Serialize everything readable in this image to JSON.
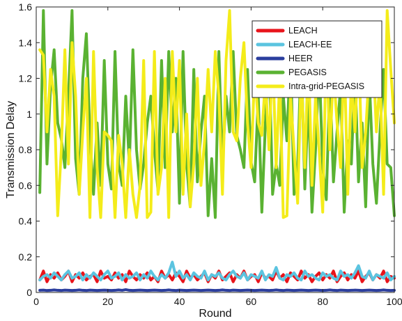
{
  "chart_data": {
    "type": "line",
    "xlabel": "Round",
    "ylabel": "Transmission Delay",
    "xlim": [
      0,
      100
    ],
    "ylim": [
      0,
      1.6
    ],
    "xticks": [
      "0",
      "20",
      "40",
      "60",
      "80",
      "100"
    ],
    "yticks": [
      "0",
      "0.2",
      "0.4",
      "0.6",
      "0.8",
      "1",
      "1.2",
      "1.4",
      "1.6"
    ],
    "xtick_values": [
      0,
      20,
      40,
      60,
      80,
      100
    ],
    "ytick_values": [
      0,
      0.2,
      0.4,
      0.6,
      0.8,
      1.0,
      1.2,
      1.4,
      1.6
    ],
    "grid": false,
    "legend_position": "top-right",
    "x": [
      1,
      2,
      3,
      4,
      5,
      6,
      7,
      8,
      9,
      10,
      11,
      12,
      13,
      14,
      15,
      16,
      17,
      18,
      19,
      20,
      21,
      22,
      23,
      24,
      25,
      26,
      27,
      28,
      29,
      30,
      31,
      32,
      33,
      34,
      35,
      36,
      37,
      38,
      39,
      40,
      41,
      42,
      43,
      44,
      45,
      46,
      47,
      48,
      49,
      50,
      51,
      52,
      53,
      54,
      55,
      56,
      57,
      58,
      59,
      60,
      61,
      62,
      63,
      64,
      65,
      66,
      67,
      68,
      69,
      70,
      71,
      72,
      73,
      74,
      75,
      76,
      77,
      78,
      79,
      80,
      81,
      82,
      83,
      84,
      85,
      86,
      87,
      88,
      89,
      90,
      91,
      92,
      93,
      94,
      95,
      96,
      97,
      98,
      99,
      100
    ],
    "series": [
      {
        "name": "LEACH",
        "color": "#e8141b",
        "values": [
          0.07,
          0.12,
          0.06,
          0.1,
          0.08,
          0.11,
          0.07,
          0.09,
          0.12,
          0.06,
          0.1,
          0.08,
          0.11,
          0.07,
          0.09,
          0.1,
          0.06,
          0.12,
          0.08,
          0.09,
          0.07,
          0.11,
          0.08,
          0.1,
          0.06,
          0.12,
          0.09,
          0.07,
          0.1,
          0.08,
          0.11,
          0.07,
          0.09,
          0.06,
          0.12,
          0.08,
          0.1,
          0.07,
          0.11,
          0.09,
          0.06,
          0.12,
          0.08,
          0.1,
          0.07,
          0.09,
          0.11,
          0.06,
          0.1,
          0.08,
          0.12,
          0.07,
          0.09,
          0.11,
          0.06,
          0.1,
          0.08,
          0.12,
          0.07,
          0.09,
          0.1,
          0.06,
          0.11,
          0.08,
          0.09,
          0.07,
          0.12,
          0.08,
          0.1,
          0.06,
          0.11,
          0.09,
          0.07,
          0.12,
          0.08,
          0.1,
          0.06,
          0.09,
          0.11,
          0.07,
          0.1,
          0.08,
          0.12,
          0.06,
          0.09,
          0.11,
          0.07,
          0.1,
          0.08,
          0.12,
          0.06,
          0.09,
          0.11,
          0.07,
          0.1,
          0.08,
          0.12,
          0.06,
          0.09,
          0.08
        ]
      },
      {
        "name": "LEACH-EE",
        "color": "#5bc4e0",
        "values": [
          0.07,
          0.09,
          0.1,
          0.08,
          0.11,
          0.09,
          0.07,
          0.1,
          0.12,
          0.08,
          0.09,
          0.11,
          0.07,
          0.1,
          0.08,
          0.11,
          0.09,
          0.07,
          0.1,
          0.12,
          0.08,
          0.09,
          0.11,
          0.07,
          0.1,
          0.08,
          0.09,
          0.11,
          0.07,
          0.1,
          0.08,
          0.12,
          0.09,
          0.07,
          0.1,
          0.08,
          0.11,
          0.17,
          0.09,
          0.12,
          0.08,
          0.1,
          0.07,
          0.11,
          0.09,
          0.08,
          0.12,
          0.07,
          0.1,
          0.09,
          0.11,
          0.08,
          0.07,
          0.1,
          0.12,
          0.09,
          0.08,
          0.11,
          0.07,
          0.1,
          0.09,
          0.08,
          0.12,
          0.07,
          0.1,
          0.09,
          0.14,
          0.08,
          0.07,
          0.1,
          0.09,
          0.11,
          0.08,
          0.07,
          0.12,
          0.09,
          0.1,
          0.08,
          0.07,
          0.11,
          0.09,
          0.1,
          0.08,
          0.07,
          0.12,
          0.09,
          0.1,
          0.08,
          0.11,
          0.15,
          0.09,
          0.08,
          0.12,
          0.07,
          0.1,
          0.09,
          0.08,
          0.11,
          0.07,
          0.09
        ]
      },
      {
        "name": "HEER",
        "color": "#2b3e9e",
        "values": [
          0.012,
          0.013,
          0.011,
          0.012,
          0.014,
          0.012,
          0.011,
          0.013,
          0.012,
          0.011,
          0.012,
          0.014,
          0.012,
          0.011,
          0.013,
          0.012,
          0.011,
          0.012,
          0.013,
          0.012,
          0.011,
          0.012,
          0.014,
          0.012,
          0.016,
          0.012,
          0.011,
          0.012,
          0.013,
          0.012,
          0.011,
          0.012,
          0.013,
          0.012,
          0.011,
          0.012,
          0.014,
          0.012,
          0.011,
          0.013,
          0.012,
          0.011,
          0.012,
          0.013,
          0.012,
          0.011,
          0.012,
          0.013,
          0.012,
          0.011,
          0.012,
          0.014,
          0.012,
          0.011,
          0.013,
          0.012,
          0.011,
          0.012,
          0.013,
          0.012,
          0.011,
          0.012,
          0.013,
          0.012,
          0.011,
          0.012,
          0.014,
          0.012,
          0.011,
          0.013,
          0.012,
          0.011,
          0.012,
          0.013,
          0.012,
          0.011,
          0.012,
          0.013,
          0.012,
          0.011,
          0.012,
          0.014,
          0.012,
          0.011,
          0.013,
          0.012,
          0.011,
          0.012,
          0.013,
          0.012,
          0.011,
          0.012,
          0.013,
          0.012,
          0.011,
          0.012,
          0.014,
          0.012,
          0.011,
          0.012
        ]
      },
      {
        "name": "PEGASIS",
        "color": "#5ab232",
        "values": [
          0.56,
          1.58,
          0.72,
          1.15,
          1.36,
          0.95,
          0.86,
          0.7,
          1.1,
          1.58,
          0.75,
          0.55,
          1.2,
          1.45,
          0.87,
          0.55,
          0.95,
          0.6,
          1.3,
          0.72,
          0.58,
          1.35,
          0.72,
          0.6,
          1.1,
          0.72,
          1.36,
          0.8,
          0.58,
          0.72,
          0.95,
          1.1,
          0.8,
          0.57,
          1.3,
          0.7,
          1.35,
          0.9,
          1.2,
          0.5,
          1.35,
          0.72,
          0.48,
          1.25,
          0.62,
          0.9,
          1.1,
          0.43,
          0.75,
          0.42,
          1.35,
          0.72,
          1.1,
          0.9,
          1.35,
          0.88,
          0.8,
          0.7,
          1.25,
          0.73,
          0.62,
          1.1,
          0.45,
          0.95,
          1.35,
          0.55,
          0.72,
          0.6,
          1.1,
          0.85,
          1.35,
          0.55,
          0.7,
          1.35,
          0.58,
          1.1,
          0.45,
          0.8,
          1.3,
          0.7,
          0.52,
          1.2,
          0.62,
          0.9,
          1.15,
          0.45,
          0.85,
          0.72,
          1.25,
          0.62,
          0.95,
          0.48,
          1.2,
          0.72,
          0.5,
          0.9,
          1.25,
          0.72,
          0.7,
          0.43
        ]
      },
      {
        "name": "Intra-grid-PEGASIS",
        "color": "#f4ec1a",
        "values": [
          1.36,
          1.33,
          0.9,
          1.25,
          1.1,
          0.43,
          0.8,
          1.36,
          0.72,
          1.4,
          1.1,
          0.55,
          0.9,
          1.2,
          0.42,
          1.35,
          0.7,
          0.42,
          0.9,
          0.88,
          0.85,
          0.42,
          0.88,
          0.72,
          0.42,
          0.8,
          0.55,
          0.42,
          0.6,
          1.3,
          0.42,
          0.45,
          1.35,
          0.55,
          0.7,
          1.2,
          0.42,
          1.35,
          0.9,
          1.3,
          0.55,
          1.0,
          0.48,
          0.72,
          1.2,
          0.6,
          0.85,
          1.25,
          0.9,
          1.35,
          1.1,
          0.55,
          1.3,
          1.58,
          0.9,
          0.85,
          1.2,
          1.4,
          0.95,
          0.7,
          1.25,
          0.95,
          0.88,
          1.2,
          0.8,
          1.35,
          0.7,
          1.2,
          0.42,
          0.43,
          1.1,
          0.8,
          0.5,
          1.25,
          0.7,
          1.35,
          0.6,
          1.1,
          0.8,
          0.45,
          1.4,
          0.8,
          1.25,
          0.95,
          0.7,
          1.35,
          0.55,
          1.2,
          0.9,
          1.4,
          0.7,
          0.9,
          1.25,
          1.35,
          0.9,
          1.2,
          0.55,
          1.58,
          1.25,
          0.95
        ]
      }
    ]
  }
}
